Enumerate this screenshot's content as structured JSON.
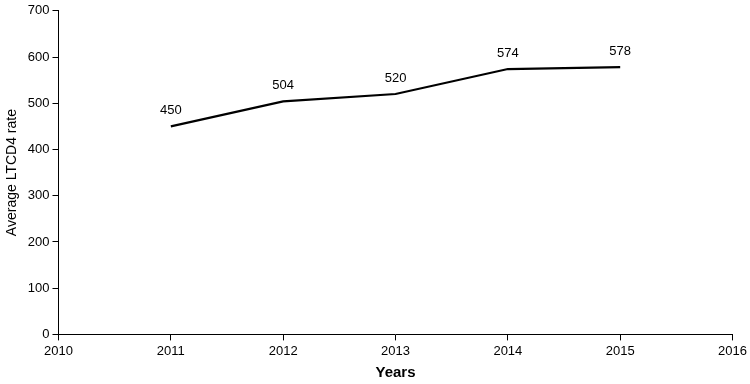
{
  "chart_data": {
    "type": "line",
    "x_label": "Years",
    "y_label": "Average LTCD4 rate",
    "x": [
      2011,
      2012,
      2013,
      2014,
      2015
    ],
    "values": [
      450,
      504,
      520,
      574,
      578
    ],
    "color": "#000000",
    "xlim": [
      2010,
      2016
    ],
    "xticks": [
      2010,
      2011,
      2012,
      2013,
      2014,
      2015,
      2016
    ],
    "ylim": [
      0,
      700
    ],
    "yticks": [
      0,
      100,
      200,
      300,
      400,
      500,
      600,
      700
    ],
    "grid": false,
    "data_labels": true
  }
}
